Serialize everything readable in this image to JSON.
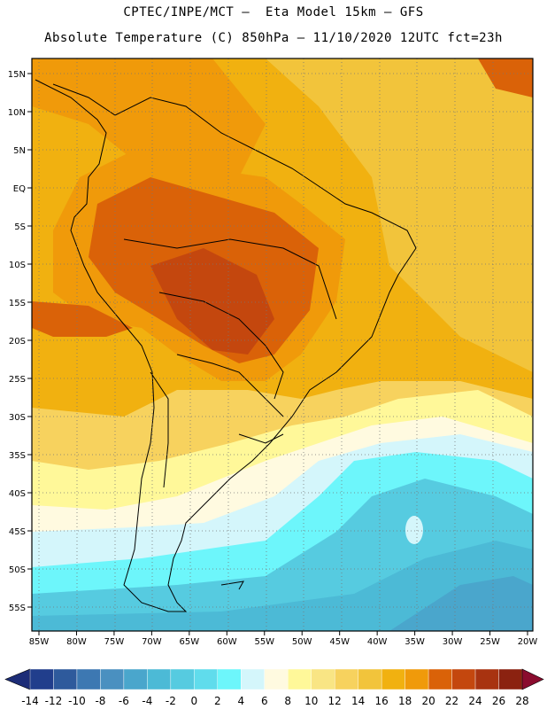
{
  "header": {
    "line1": "CPTEC/INPE/MCT –  Eta Model 15km – GFS",
    "line2": "Absolute Temperature (C) 850hPa – 11/10/2020 12UTC fct=23h"
  },
  "axes": {
    "lon_labels": [
      "85W",
      "80W",
      "75W",
      "70W",
      "65W",
      "60W",
      "55W",
      "50W",
      "45W",
      "40W",
      "35W",
      "30W",
      "25W",
      "20W"
    ],
    "lat_labels": [
      "15N",
      "10N",
      "5N",
      "EQ",
      "5S",
      "10S",
      "15S",
      "20S",
      "25S",
      "30S",
      "35S",
      "40S",
      "45S",
      "50S",
      "55S"
    ]
  },
  "colorbar": {
    "labels": [
      "-14",
      "-12",
      "-10",
      "-8",
      "-6",
      "-4",
      "-2",
      "0",
      "2",
      "4",
      "6",
      "8",
      "10",
      "12",
      "14",
      "16",
      "18",
      "20",
      "22",
      "24",
      "26",
      "28"
    ],
    "colors": [
      "#213e8c",
      "#2e5a9c",
      "#3d78b2",
      "#4a90c0",
      "#4aa6cc",
      "#4cbad6",
      "#56cbe0",
      "#60dcec",
      "#6df6fb",
      "#d4f6fb",
      "#fffae0",
      "#fff899",
      "#f9e584",
      "#f7d25e",
      "#f2c43b",
      "#f1b110",
      "#f09a0a",
      "#da6208",
      "#c4470e",
      "#a83310",
      "#8b2210"
    ],
    "under_color": "#1d2d77",
    "over_color": "#8a0c2e"
  },
  "colors": {
    "land_outline": "#000000",
    "grid": "#777777"
  }
}
